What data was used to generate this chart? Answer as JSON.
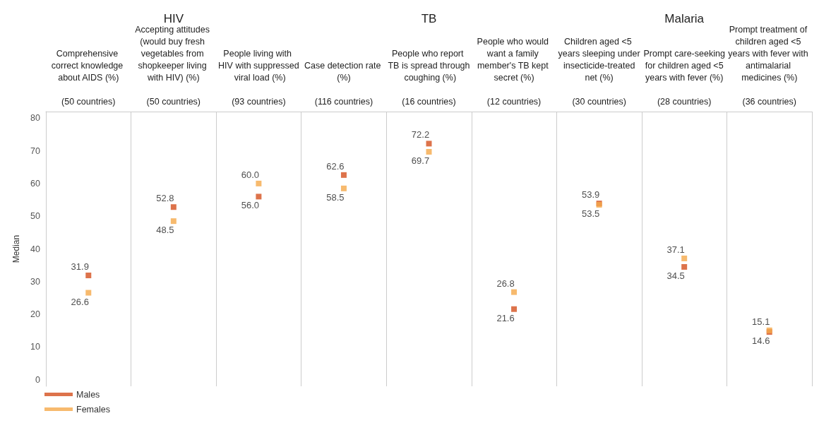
{
  "chart_data": {
    "type": "scatter",
    "ylabel": "Median",
    "categories": [
      "Comprehensive correct knowledge about AIDS (%)\n\n(50 countries)",
      "Accepting attitudes (would buy fresh vegetables from shopkeeper living with HIV) (%)\n\n(50 countries)",
      "People living with HIV with suppressed viral load (%)\n\n(93 countries)",
      "Case detection rate (%)\n\n(116 countries)",
      "People who report TB is spread through coughing (%)\n\n(16 countries)",
      "People who would want a family member's TB kept secret (%)\n\n(12 countries)",
      "Children aged <5 years sleeping under insecticide-treated net (%)\n\n(30 countries)",
      "Prompt care-seeking for children aged <5 years with fever (%)\n\n(28 countries)",
      "Prompt treatment of children aged <5 years with fever with antimalarial medicines (%)\n\n(36 countries)"
    ],
    "series": [
      {
        "name": "Males",
        "color": "#d4501e",
        "values": [
          31.9,
          52.8,
          56.0,
          62.6,
          72.2,
          21.6,
          53.9,
          34.5,
          14.6
        ],
        "value_labels": [
          "31.9",
          "52.8",
          "56.0",
          "62.6",
          "72.2",
          "21.6",
          "53.9",
          "34.5",
          "14.6"
        ]
      },
      {
        "name": "Females",
        "color": "#f5a94a",
        "values": [
          26.6,
          48.5,
          60.0,
          58.5,
          69.7,
          26.8,
          53.5,
          37.1,
          15.1
        ],
        "value_labels": [
          "26.6",
          "48.5",
          "60.0",
          "58.5",
          "69.7",
          "26.8",
          "53.5",
          "37.1",
          "15.1"
        ]
      }
    ],
    "marker": "square",
    "annotations": [
      "HIV",
      "TB",
      "Malaria"
    ],
    "ylim": [
      -2,
      82
    ],
    "yticks": [
      0,
      10,
      20,
      30,
      40,
      50,
      60,
      70,
      80
    ],
    "grid": "x",
    "legend": "bottom left"
  }
}
